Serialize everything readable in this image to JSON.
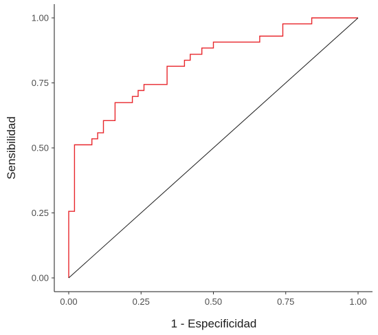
{
  "chart_data": {
    "type": "line",
    "title": "",
    "xlabel": "1 - Especificidad",
    "ylabel": "Sensibilidad",
    "xlim": [
      0,
      1
    ],
    "ylim": [
      0,
      1
    ],
    "x_ticks": [
      0,
      0.25,
      0.5,
      0.75,
      1
    ],
    "y_ticks": [
      0,
      0.25,
      0.5,
      0.75,
      1
    ],
    "x_tick_labels": [
      "0.00",
      "0.25",
      "0.50",
      "0.75",
      "1.00"
    ],
    "y_tick_labels": [
      "0.00",
      "0.25",
      "0.50",
      "0.75",
      "1.00"
    ],
    "grid": false,
    "legend": "none",
    "series": [
      {
        "kind": "step",
        "color": "#e8262b",
        "x": [
          0.0,
          0.0,
          0.02,
          0.02,
          0.08,
          0.08,
          0.1,
          0.1,
          0.12,
          0.12,
          0.16,
          0.16,
          0.22,
          0.22,
          0.24,
          0.24,
          0.26,
          0.26,
          0.34,
          0.34,
          0.4,
          0.4,
          0.42,
          0.42,
          0.46,
          0.46,
          0.5,
          0.5,
          0.66,
          0.66,
          0.74,
          0.74,
          0.84,
          0.84,
          1.0
        ],
        "y": [
          0.0,
          0.256,
          0.256,
          0.512,
          0.512,
          0.535,
          0.535,
          0.558,
          0.558,
          0.605,
          0.605,
          0.674,
          0.674,
          0.698,
          0.698,
          0.721,
          0.721,
          0.744,
          0.744,
          0.814,
          0.814,
          0.837,
          0.837,
          0.86,
          0.86,
          0.884,
          0.884,
          0.907,
          0.907,
          0.93,
          0.93,
          0.977,
          0.977,
          1.0,
          1.0
        ]
      },
      {
        "kind": "reference",
        "color": "#1a1a1a",
        "x": [
          0,
          1
        ],
        "y": [
          0,
          1
        ]
      }
    ]
  }
}
